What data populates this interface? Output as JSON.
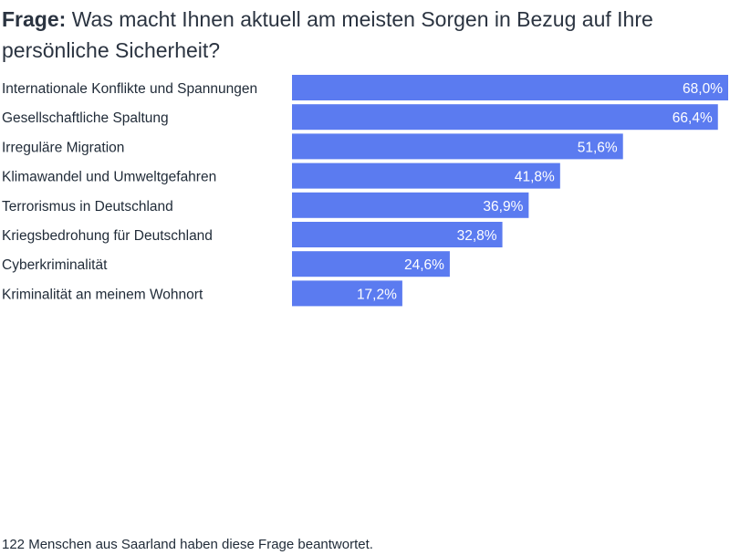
{
  "title": {
    "prefix": "Frage:",
    "text": "Was macht Ihnen aktuell am meisten Sorgen in Bezug auf Ihre persönliche Sicherheit?"
  },
  "footnote": "122 Menschen aus Saarland haben diese Frage beantwortet.",
  "colors": {
    "bar": "#5b7bf0",
    "value_label": "#ffffff",
    "category_label": "#1f2a37"
  },
  "chart_data": {
    "type": "bar",
    "orientation": "horizontal",
    "categories": [
      "Internationale Konflikte und Spannungen",
      "Gesellschaftliche Spaltung",
      "Irreguläre Migration",
      "Klimawandel und Umweltgefahren",
      "Terrorismus in Deutschland",
      "Kriegsbedrohung für Deutschland",
      "Cyberkriminalität",
      "Kriminalität an meinem Wohnort"
    ],
    "values": [
      68.0,
      66.4,
      51.6,
      41.8,
      36.9,
      32.8,
      24.6,
      17.2
    ],
    "value_labels": [
      "68,0%",
      "66,4%",
      "51,6%",
      "41,8%",
      "36,9%",
      "32,8%",
      "24,6%",
      "17,2%"
    ],
    "xlim": [
      0,
      68.0
    ],
    "grid": false,
    "legend": "none"
  }
}
